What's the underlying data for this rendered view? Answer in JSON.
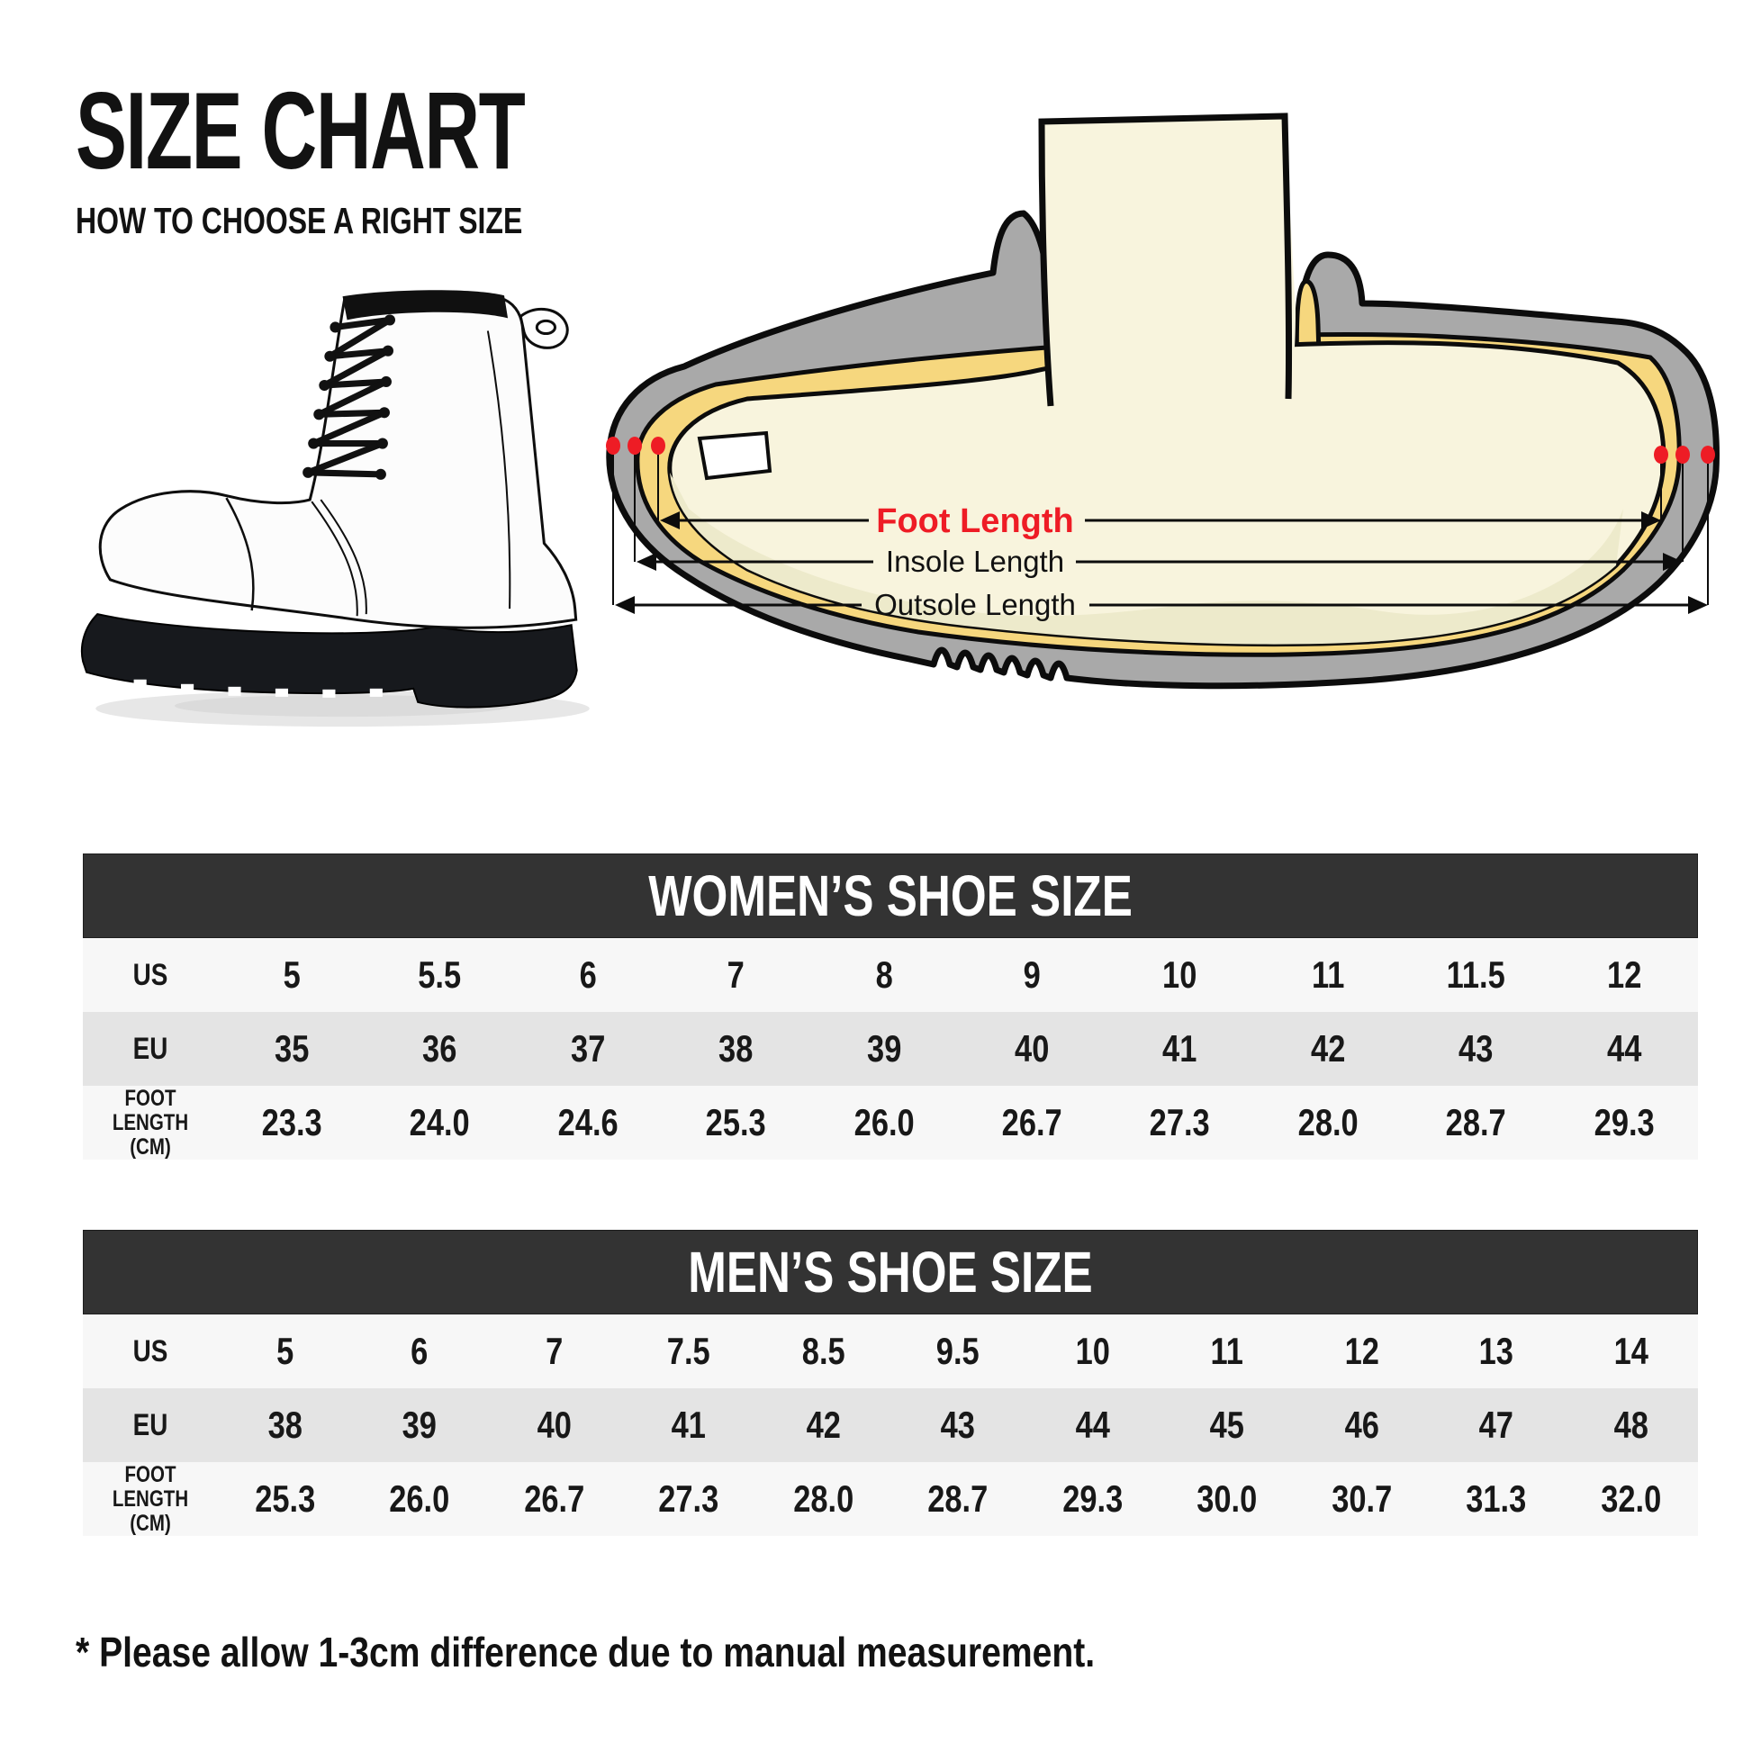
{
  "page": {
    "title": "SIZE CHART",
    "subtitle": "HOW TO CHOOSE A RIGHT SIZE",
    "footnote": "* Please allow 1-3cm difference due to manual measurement."
  },
  "diagram": {
    "foot_length_label": "Foot Length",
    "insole_length_label": "Insole Length",
    "outsole_length_label": "Outsole Length"
  },
  "colors": {
    "accent_red": "#ee1c25",
    "table_header_bg": "#333333",
    "row_light": "#f7f7f7",
    "row_gray": "#e4e4e4",
    "sole_gray": "#a9a9a9",
    "insole_yellow": "#f6d77e",
    "foot_cream": "#f8f4dd",
    "foot_shade": "#edeacb",
    "boot_black": "#17191d"
  },
  "chart_data": [
    {
      "type": "table",
      "title": "WOMEN’S SHOE SIZE",
      "rows": [
        {
          "label": "US",
          "display_label": "US",
          "values": [
            "5",
            "5.5",
            "6",
            "7",
            "8",
            "9",
            "10",
            "11",
            "11.5",
            "12"
          ]
        },
        {
          "label": "EU",
          "display_label": "EU",
          "values": [
            "35",
            "36",
            "37",
            "38",
            "39",
            "40",
            "41",
            "42",
            "43",
            "44"
          ]
        },
        {
          "label": "FOOT LENGTH (CM)",
          "display_label": "FOOT\nLENGTH (CM)",
          "values": [
            "23.3",
            "24.0",
            "24.6",
            "25.3",
            "26.0",
            "26.7",
            "27.3",
            "28.0",
            "28.7",
            "29.3"
          ]
        }
      ]
    },
    {
      "type": "table",
      "title": "MEN’S SHOE SIZE",
      "rows": [
        {
          "label": "US",
          "display_label": "US",
          "values": [
            "5",
            "6",
            "7",
            "7.5",
            "8.5",
            "9.5",
            "10",
            "11",
            "12",
            "13",
            "14"
          ]
        },
        {
          "label": "EU",
          "display_label": "EU",
          "values": [
            "38",
            "39",
            "40",
            "41",
            "42",
            "43",
            "44",
            "45",
            "46",
            "47",
            "48"
          ]
        },
        {
          "label": "FOOT LENGTH (CM)",
          "display_label": "FOOT\nLENGTH (CM)",
          "values": [
            "25.3",
            "26.0",
            "26.7",
            "27.3",
            "28.0",
            "28.7",
            "29.3",
            "30.0",
            "30.7",
            "31.3",
            "32.0"
          ]
        }
      ]
    }
  ]
}
